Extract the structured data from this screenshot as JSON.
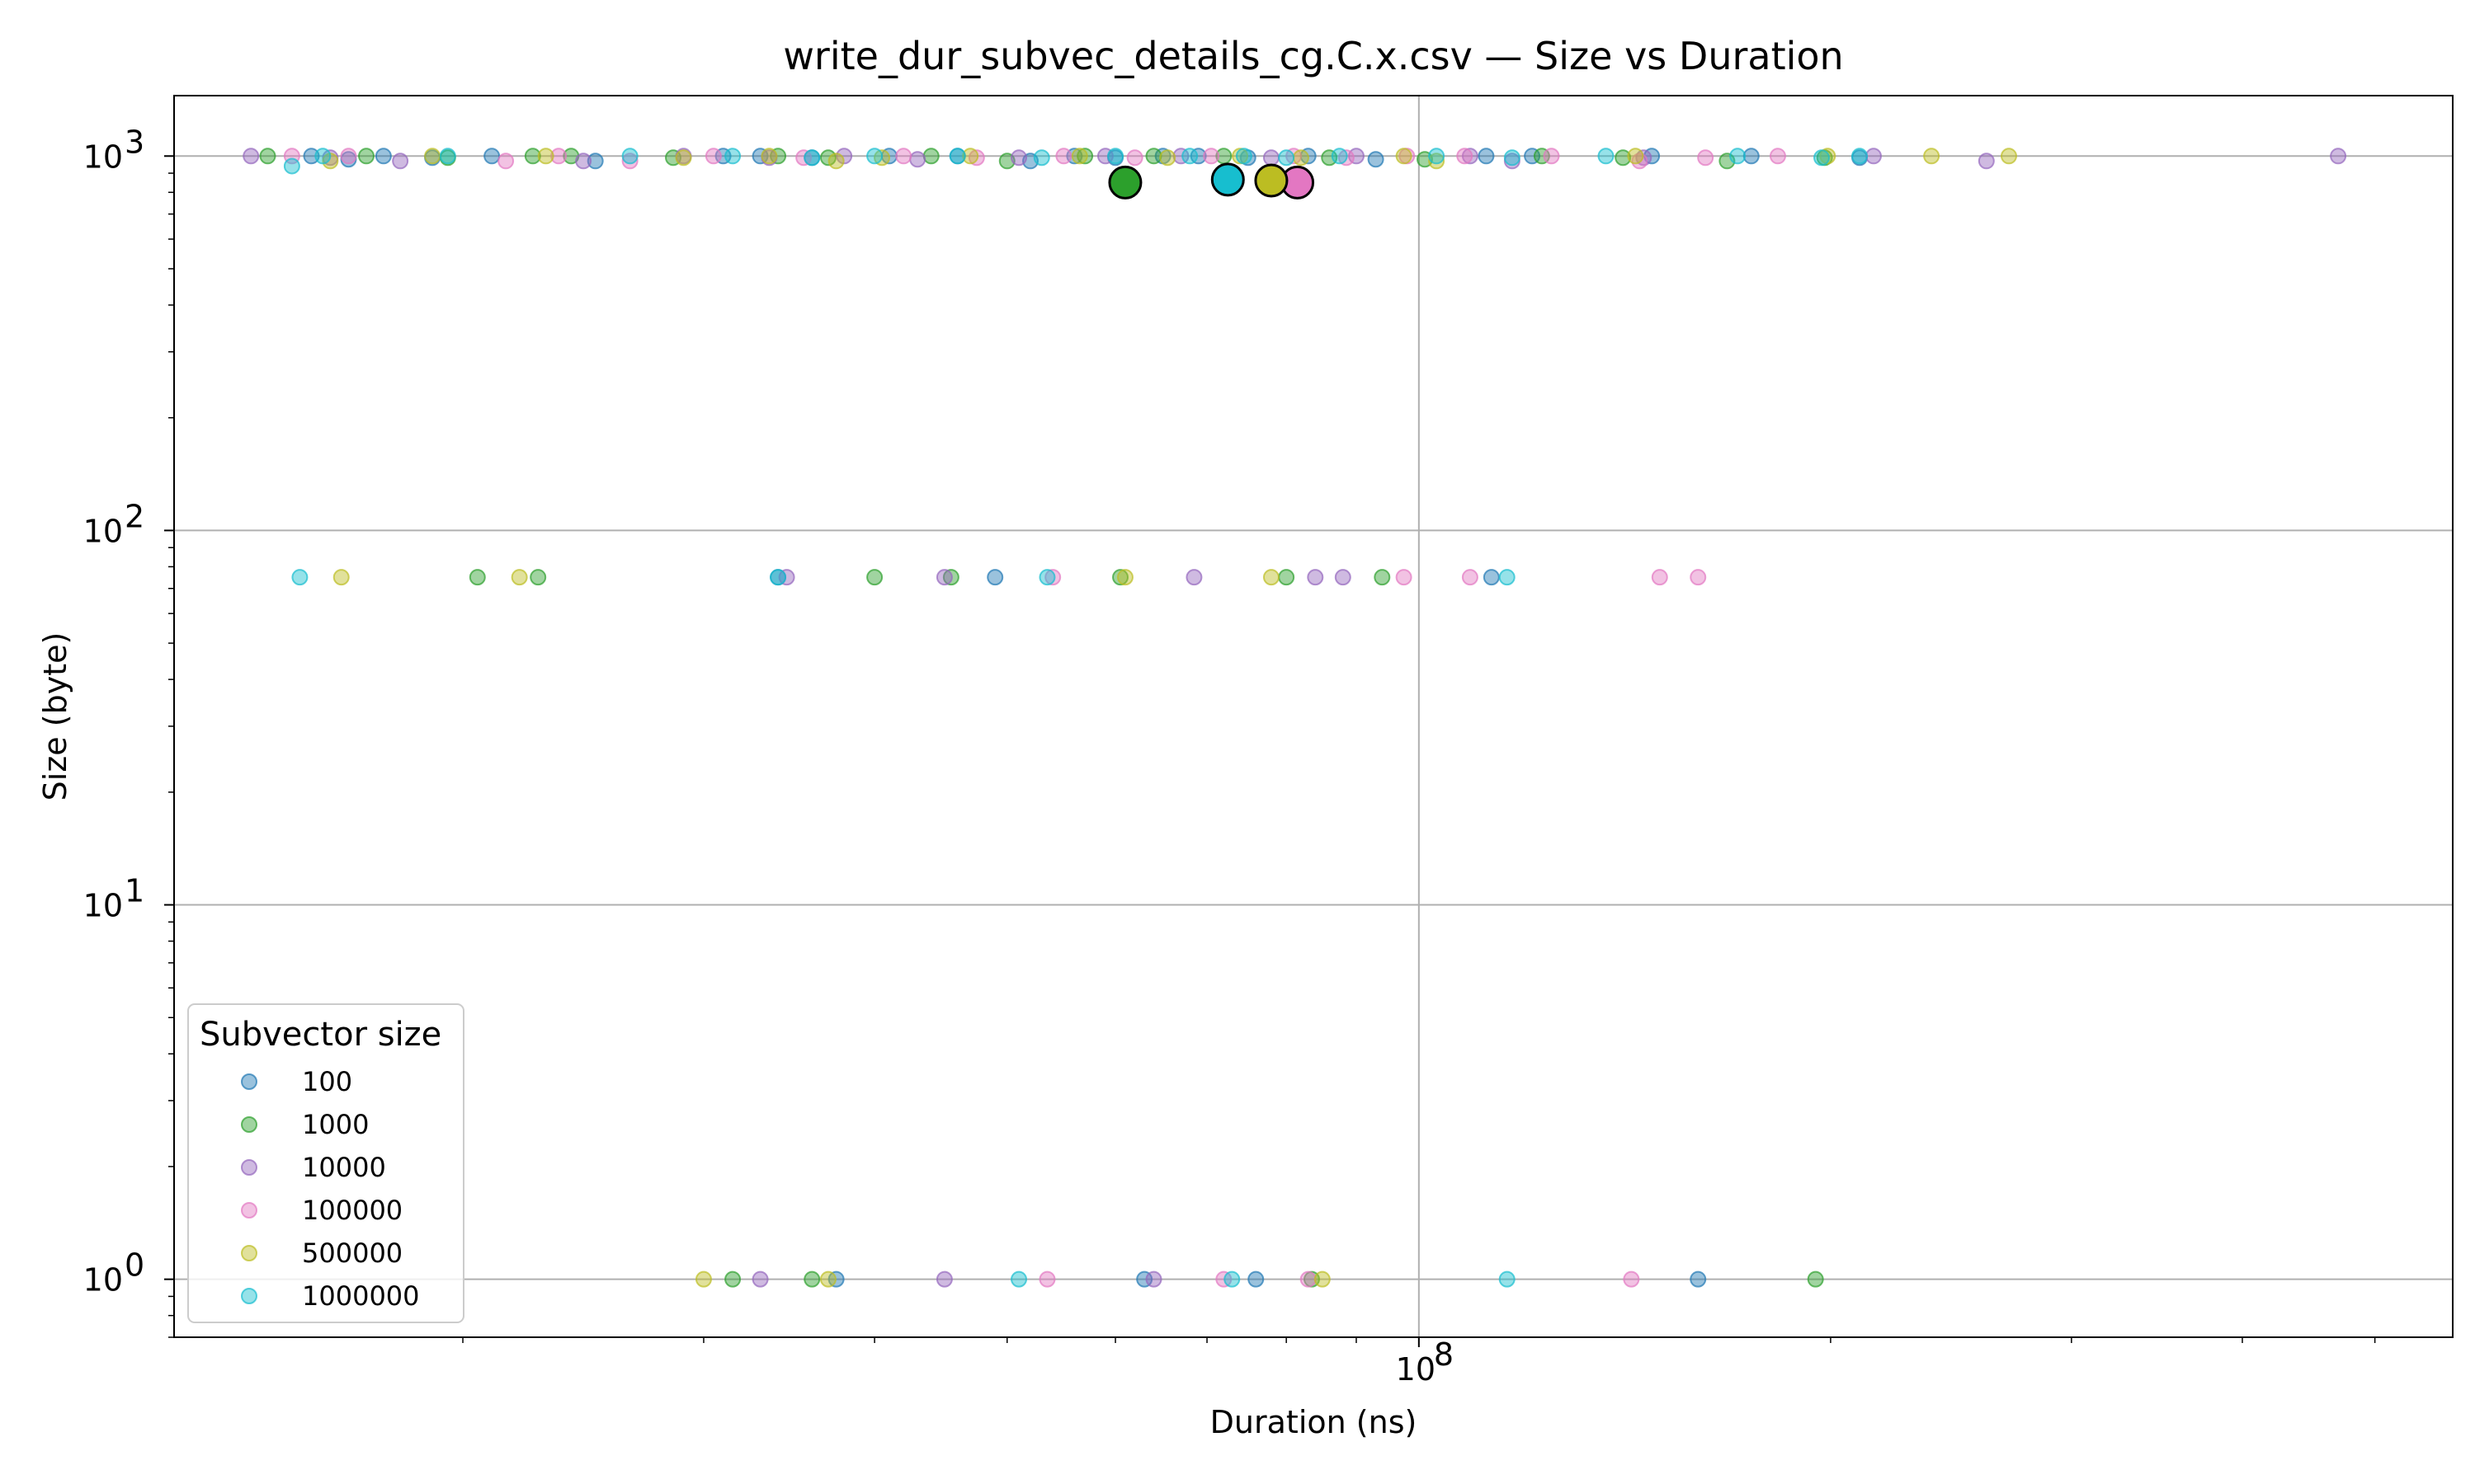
{
  "chart_data": {
    "type": "scatter",
    "title": "write_dur_subvec_details_cg.C.x.csv — Size vs Duration",
    "xlabel": "Duration (ns)",
    "ylabel": "Size (byte)",
    "xscale": "log",
    "yscale": "log",
    "xlim": [
      12300000,
      570000000
    ],
    "ylim": [
      0.7,
      1450
    ],
    "x_ticks": [
      {
        "value": 100000000,
        "label": "10",
        "exp": "8"
      }
    ],
    "x_minor_ticks": [
      20000000,
      30000000,
      40000000,
      50000000,
      60000000,
      70000000,
      80000000,
      90000000,
      200000000,
      300000000,
      400000000,
      500000000
    ],
    "y_ticks": [
      {
        "value": 1,
        "label": "10",
        "exp": "0"
      },
      {
        "value": 10,
        "label": "10",
        "exp": "1"
      },
      {
        "value": 100,
        "label": "10",
        "exp": "2"
      },
      {
        "value": 1000,
        "label": "10",
        "exp": "3"
      }
    ],
    "grid": true,
    "legend": {
      "title": "Subvector size",
      "position": "lower-left"
    },
    "series": [
      {
        "name": "100",
        "color": "#1f77b4",
        "x": [
          15500000,
          16500000,
          17500000,
          19000000,
          21000000,
          25000000,
          31000000,
          33000000,
          36000000,
          41000000,
          46000000,
          52000000,
          56000000,
          60000000,
          65000000,
          69000000,
          75000000,
          83000000,
          93000000,
          112000000,
          121000000,
          148000000,
          175000000,
          210000000,
          34000000,
          49000000,
          113000000,
          37500000,
          63000000,
          76000000,
          160000000
        ],
        "y": [
          1000,
          980,
          1000,
          990,
          1000,
          970,
          1000,
          1000,
          990,
          1000,
          1000,
          970,
          1000,
          990,
          1000,
          1000,
          990,
          1000,
          980,
          1000,
          1000,
          1000,
          1000,
          990,
          75,
          75,
          75,
          1,
          1,
          1,
          1
        ],
        "mean": null
      },
      {
        "name": "1000",
        "color": "#2ca02c",
        "x": [
          14400000,
          17000000,
          19500000,
          22500000,
          24000000,
          28500000,
          34000000,
          37000000,
          44000000,
          50000000,
          57000000,
          64000000,
          72000000,
          86000000,
          101000000,
          123000000,
          141000000,
          168000000,
          198000000,
          20500000,
          22700000,
          40000000,
          45500000,
          60500000,
          80000000,
          94000000,
          31500000,
          36000000,
          83500000,
          195000000
        ],
        "y": [
          1000,
          1000,
          990,
          1000,
          1000,
          990,
          1000,
          990,
          1000,
          970,
          1000,
          1000,
          1000,
          990,
          980,
          1000,
          990,
          970,
          990,
          75,
          75,
          75,
          75,
          75,
          75,
          75,
          1,
          1,
          1,
          1
        ],
        "mean": {
          "x": 61000000,
          "y": 850
        }
      },
      {
        "name": "10000",
        "color": "#9467bd",
        "x": [
          14000000,
          16000000,
          18000000,
          24500000,
          29000000,
          33500000,
          38000000,
          43000000,
          51000000,
          59000000,
          67000000,
          78000000,
          90000000,
          109000000,
          117000000,
          146000000,
          215000000,
          260000000,
          470000000,
          34500000,
          45000000,
          68500000,
          84000000,
          88000000,
          33000000,
          45000000,
          64000000
        ],
        "y": [
          1000,
          990,
          970,
          970,
          1000,
          990,
          1000,
          980,
          990,
          1000,
          1000,
          990,
          1000,
          1000,
          970,
          990,
          1000,
          970,
          1000,
          75,
          75,
          75,
          75,
          75,
          1,
          1,
          1
        ],
        "mean": null
      },
      {
        "name": "100000",
        "color": "#e377c2",
        "x": [
          15000000,
          16500000,
          21500000,
          23500000,
          26500000,
          30500000,
          35500000,
          42000000,
          47500000,
          55000000,
          62000000,
          70500000,
          81000000,
          88500000,
          98000000,
          108000000,
          125000000,
          145000000,
          162000000,
          183000000,
          54000000,
          97500000,
          109000000,
          150000000,
          160000000,
          53500000,
          72000000,
          83000000,
          143000000
        ],
        "y": [
          1000,
          1000,
          970,
          1000,
          970,
          1000,
          990,
          1000,
          990,
          1000,
          990,
          1000,
          1000,
          990,
          1000,
          1000,
          1000,
          970,
          990,
          1000,
          75,
          75,
          75,
          75,
          75,
          1,
          1,
          1,
          1
        ],
        "mean": {
          "x": 81500000,
          "y": 850
        }
      },
      {
        "name": "500000",
        "color": "#bcbd22",
        "x": [
          16000000,
          19000000,
          23000000,
          29000000,
          33500000,
          37500000,
          40500000,
          47000000,
          56500000,
          65500000,
          74000000,
          82000000,
          97500000,
          103000000,
          144000000,
          199000000,
          237000000,
          270000000,
          16300000,
          22000000,
          61000000,
          78000000,
          30000000,
          37000000,
          85000000
        ],
        "y": [
          970,
          1000,
          1000,
          990,
          1000,
          970,
          990,
          1000,
          1000,
          990,
          1000,
          990,
          1000,
          970,
          1000,
          1000,
          1000,
          1000,
          75,
          75,
          75,
          75,
          1,
          1,
          1
        ],
        "mean": {
          "x": 78000000,
          "y": 860
        }
      },
      {
        "name": "1000000",
        "color": "#17becf",
        "x": [
          15000000,
          15800000,
          19500000,
          26500000,
          31500000,
          36000000,
          40000000,
          46000000,
          53000000,
          60000000,
          68000000,
          74500000,
          80000000,
          87500000,
          103000000,
          117000000,
          137000000,
          171000000,
          197000000,
          210000000,
          15200000,
          34000000,
          53500000,
          116000000,
          51000000,
          73000000,
          116000000
        ],
        "y": [
          940,
          1000,
          1000,
          1000,
          1000,
          990,
          1000,
          1000,
          990,
          1000,
          1000,
          1000,
          990,
          1000,
          1000,
          990,
          1000,
          1000,
          990,
          1000,
          75,
          75,
          75,
          75,
          1,
          1,
          1
        ],
        "mean": {
          "x": 72500000,
          "y": 865
        }
      }
    ]
  }
}
